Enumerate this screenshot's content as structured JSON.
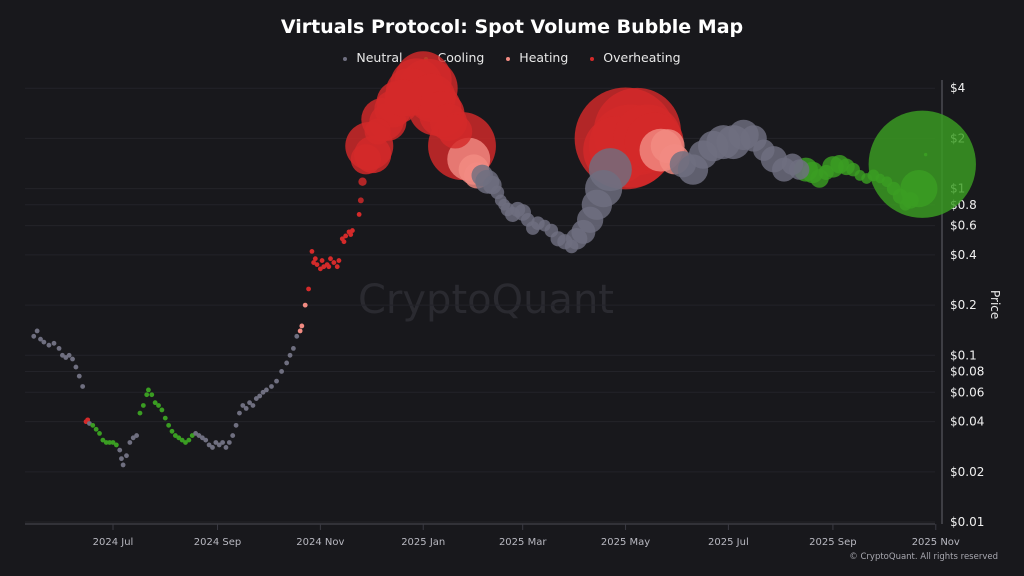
{
  "chart_data": {
    "type": "scatter",
    "title": "Virtuals Protocol: Spot Volume Bubble Map",
    "ylabel": "Price",
    "xlabel": "",
    "yscale": "log",
    "ylim": [
      0.01,
      5
    ],
    "xlim": [
      "2024-05-05",
      "2025-11-01"
    ],
    "grid": true,
    "legend_position": "top",
    "y_ticks": [
      {
        "value": 4,
        "label": "$4"
      },
      {
        "value": 2,
        "label": "$2"
      },
      {
        "value": 1,
        "label": "$1"
      },
      {
        "value": 0.8,
        "label": "$0.8"
      },
      {
        "value": 0.6,
        "label": "$0.6"
      },
      {
        "value": 0.4,
        "label": "$0.4"
      },
      {
        "value": 0.2,
        "label": "$0.2"
      },
      {
        "value": 0.1,
        "label": "$0.1"
      },
      {
        "value": 0.08,
        "label": "$0.08"
      },
      {
        "value": 0.06,
        "label": "$0.06"
      },
      {
        "value": 0.04,
        "label": "$0.04"
      },
      {
        "value": 0.02,
        "label": "$0.02"
      },
      {
        "value": 0.01,
        "label": "$0.01"
      }
    ],
    "x_ticks": [
      {
        "value": "2024-07-01",
        "label": "2024 Jul"
      },
      {
        "value": "2024-09-01",
        "label": "2024 Sep"
      },
      {
        "value": "2024-11-01",
        "label": "2024 Nov"
      },
      {
        "value": "2025-01-01",
        "label": "2025 Jan"
      },
      {
        "value": "2025-03-01",
        "label": "2025 Mar"
      },
      {
        "value": "2025-05-01",
        "label": "2025 May"
      },
      {
        "value": "2025-07-01",
        "label": "2025 Jul"
      },
      {
        "value": "2025-09-01",
        "label": "2025 Sep"
      },
      {
        "value": "2025-11-01",
        "label": "2025 Nov"
      }
    ],
    "categories": [
      {
        "key": "N",
        "name": "Neutral",
        "color": "#6f6f80"
      },
      {
        "key": "C",
        "name": "Cooling",
        "color": "#3a9d22"
      },
      {
        "key": "H",
        "name": "Heating",
        "color": "#f28b82"
      },
      {
        "key": "O",
        "name": "Overheating",
        "color": "#d42a2a"
      }
    ],
    "point_fields": [
      "date",
      "price",
      "relative_volume",
      "category"
    ],
    "points": [
      [
        "2024-05-15",
        0.13,
        1,
        "N"
      ],
      [
        "2024-05-17",
        0.14,
        1,
        "N"
      ],
      [
        "2024-05-19",
        0.125,
        1,
        "N"
      ],
      [
        "2024-05-21",
        0.12,
        1,
        "N"
      ],
      [
        "2024-05-24",
        0.115,
        1,
        "N"
      ],
      [
        "2024-05-27",
        0.118,
        1,
        "N"
      ],
      [
        "2024-05-30",
        0.11,
        1,
        "N"
      ],
      [
        "2024-06-01",
        0.1,
        1,
        "N"
      ],
      [
        "2024-06-03",
        0.097,
        1,
        "N"
      ],
      [
        "2024-06-05",
        0.1,
        1,
        "N"
      ],
      [
        "2024-06-07",
        0.095,
        1,
        "N"
      ],
      [
        "2024-06-09",
        0.085,
        1,
        "N"
      ],
      [
        "2024-06-11",
        0.075,
        1,
        "N"
      ],
      [
        "2024-06-13",
        0.065,
        1,
        "N"
      ],
      [
        "2024-06-15",
        0.04,
        1,
        "O"
      ],
      [
        "2024-06-16",
        0.041,
        1,
        "O"
      ],
      [
        "2024-06-17",
        0.039,
        1,
        "N"
      ],
      [
        "2024-06-19",
        0.038,
        1,
        "C"
      ],
      [
        "2024-06-21",
        0.036,
        1,
        "C"
      ],
      [
        "2024-06-23",
        0.034,
        1,
        "C"
      ],
      [
        "2024-06-25",
        0.031,
        1,
        "C"
      ],
      [
        "2024-06-27",
        0.03,
        1,
        "C"
      ],
      [
        "2024-06-29",
        0.03,
        1,
        "C"
      ],
      [
        "2024-07-01",
        0.03,
        1,
        "C"
      ],
      [
        "2024-07-03",
        0.029,
        1,
        "C"
      ],
      [
        "2024-07-05",
        0.027,
        1,
        "N"
      ],
      [
        "2024-07-06",
        0.024,
        1,
        "N"
      ],
      [
        "2024-07-07",
        0.022,
        1,
        "N"
      ],
      [
        "2024-07-09",
        0.025,
        1,
        "N"
      ],
      [
        "2024-07-11",
        0.03,
        1,
        "N"
      ],
      [
        "2024-07-13",
        0.032,
        1,
        "N"
      ],
      [
        "2024-07-15",
        0.033,
        1,
        "N"
      ],
      [
        "2024-07-17",
        0.045,
        1,
        "C"
      ],
      [
        "2024-07-19",
        0.05,
        1,
        "C"
      ],
      [
        "2024-07-21",
        0.058,
        1,
        "C"
      ],
      [
        "2024-07-22",
        0.062,
        1,
        "C"
      ],
      [
        "2024-07-24",
        0.058,
        1,
        "C"
      ],
      [
        "2024-07-26",
        0.052,
        1,
        "C"
      ],
      [
        "2024-07-28",
        0.05,
        1,
        "C"
      ],
      [
        "2024-07-30",
        0.047,
        1,
        "C"
      ],
      [
        "2024-08-01",
        0.042,
        1,
        "C"
      ],
      [
        "2024-08-03",
        0.038,
        1,
        "C"
      ],
      [
        "2024-08-05",
        0.035,
        1,
        "C"
      ],
      [
        "2024-08-07",
        0.033,
        1,
        "C"
      ],
      [
        "2024-08-09",
        0.032,
        1,
        "C"
      ],
      [
        "2024-08-11",
        0.031,
        1,
        "C"
      ],
      [
        "2024-08-13",
        0.03,
        1,
        "C"
      ],
      [
        "2024-08-15",
        0.031,
        1,
        "C"
      ],
      [
        "2024-08-17",
        0.033,
        1,
        "C"
      ],
      [
        "2024-08-19",
        0.034,
        1,
        "N"
      ],
      [
        "2024-08-21",
        0.033,
        1,
        "N"
      ],
      [
        "2024-08-23",
        0.032,
        1,
        "N"
      ],
      [
        "2024-08-25",
        0.031,
        1,
        "N"
      ],
      [
        "2024-08-27",
        0.029,
        1,
        "N"
      ],
      [
        "2024-08-29",
        0.028,
        1,
        "N"
      ],
      [
        "2024-08-31",
        0.03,
        1,
        "N"
      ],
      [
        "2024-09-02",
        0.029,
        1,
        "N"
      ],
      [
        "2024-09-04",
        0.03,
        1,
        "N"
      ],
      [
        "2024-09-06",
        0.028,
        1,
        "N"
      ],
      [
        "2024-09-08",
        0.03,
        1,
        "N"
      ],
      [
        "2024-09-10",
        0.033,
        1,
        "N"
      ],
      [
        "2024-09-12",
        0.038,
        1,
        "N"
      ],
      [
        "2024-09-14",
        0.045,
        1,
        "N"
      ],
      [
        "2024-09-16",
        0.05,
        1,
        "N"
      ],
      [
        "2024-09-18",
        0.048,
        1,
        "N"
      ],
      [
        "2024-09-20",
        0.052,
        1,
        "N"
      ],
      [
        "2024-09-22",
        0.05,
        1,
        "N"
      ],
      [
        "2024-09-24",
        0.055,
        1,
        "N"
      ],
      [
        "2024-09-26",
        0.057,
        1,
        "N"
      ],
      [
        "2024-09-28",
        0.06,
        1,
        "N"
      ],
      [
        "2024-09-30",
        0.062,
        1,
        "N"
      ],
      [
        "2024-10-03",
        0.065,
        1,
        "N"
      ],
      [
        "2024-10-06",
        0.07,
        1,
        "N"
      ],
      [
        "2024-10-09",
        0.08,
        1,
        "N"
      ],
      [
        "2024-10-12",
        0.09,
        1,
        "N"
      ],
      [
        "2024-10-14",
        0.1,
        1,
        "N"
      ],
      [
        "2024-10-16",
        0.11,
        1,
        "N"
      ],
      [
        "2024-10-18",
        0.13,
        1,
        "N"
      ],
      [
        "2024-10-20",
        0.14,
        1,
        "H"
      ],
      [
        "2024-10-21",
        0.15,
        1,
        "H"
      ],
      [
        "2024-10-23",
        0.2,
        1,
        "H"
      ],
      [
        "2024-10-25",
        0.25,
        1,
        "O"
      ],
      [
        "2024-10-27",
        0.42,
        1,
        "O"
      ],
      [
        "2024-10-28",
        0.36,
        1,
        "O"
      ],
      [
        "2024-10-29",
        0.38,
        1,
        "O"
      ],
      [
        "2024-10-30",
        0.35,
        1,
        "O"
      ],
      [
        "2024-11-01",
        0.33,
        1,
        "O"
      ],
      [
        "2024-11-02",
        0.37,
        1,
        "O"
      ],
      [
        "2024-11-03",
        0.34,
        1,
        "O"
      ],
      [
        "2024-11-05",
        0.35,
        1,
        "O"
      ],
      [
        "2024-11-06",
        0.34,
        1,
        "O"
      ],
      [
        "2024-11-07",
        0.38,
        1,
        "O"
      ],
      [
        "2024-11-09",
        0.36,
        1,
        "O"
      ],
      [
        "2024-11-11",
        0.34,
        1,
        "O"
      ],
      [
        "2024-11-12",
        0.37,
        1,
        "O"
      ],
      [
        "2024-11-14",
        0.5,
        1,
        "O"
      ],
      [
        "2024-11-15",
        0.48,
        1,
        "O"
      ],
      [
        "2024-11-16",
        0.52,
        1,
        "O"
      ],
      [
        "2024-11-18",
        0.55,
        1,
        "O"
      ],
      [
        "2024-11-19",
        0.53,
        1,
        "O"
      ],
      [
        "2024-11-20",
        0.56,
        1,
        "O"
      ],
      [
        "2024-11-24",
        0.7,
        1,
        "O"
      ],
      [
        "2024-11-25",
        0.85,
        1.5,
        "O"
      ],
      [
        "2024-11-26",
        1.1,
        3,
        "O"
      ],
      [
        "2024-11-28",
        1.5,
        40,
        "O"
      ],
      [
        "2024-11-30",
        1.8,
        100,
        "O"
      ],
      [
        "2024-12-02",
        1.6,
        60,
        "O"
      ],
      [
        "2024-12-05",
        2.2,
        30,
        "O"
      ],
      [
        "2024-12-08",
        2.6,
        80,
        "O"
      ],
      [
        "2024-12-11",
        2.5,
        60,
        "O"
      ],
      [
        "2024-12-14",
        3.0,
        60,
        "O"
      ],
      [
        "2024-12-17",
        3.3,
        80,
        "O"
      ],
      [
        "2024-12-20",
        3.5,
        60,
        "O"
      ],
      [
        "2024-12-24",
        3.8,
        100,
        "O"
      ],
      [
        "2024-12-28",
        4.2,
        120,
        "O"
      ],
      [
        "2025-01-01",
        4.5,
        140,
        "O"
      ],
      [
        "2025-01-04",
        4.0,
        150,
        "O"
      ],
      [
        "2025-01-06",
        3.5,
        100,
        "O"
      ],
      [
        "2025-01-08",
        3.0,
        120,
        "O"
      ],
      [
        "2025-01-12",
        2.8,
        90,
        "O"
      ],
      [
        "2025-01-16",
        2.5,
        60,
        "O"
      ],
      [
        "2025-01-20",
        2.2,
        50,
        "O"
      ],
      [
        "2025-01-24",
        1.8,
        200,
        "O"
      ],
      [
        "2025-01-28",
        1.5,
        80,
        "H"
      ],
      [
        "2025-01-31",
        1.3,
        40,
        "H"
      ],
      [
        "2025-02-02",
        1.2,
        30,
        "H"
      ],
      [
        "2025-02-05",
        1.2,
        20,
        "N"
      ],
      [
        "2025-02-08",
        1.1,
        25,
        "N"
      ],
      [
        "2025-02-11",
        1.05,
        15,
        "N"
      ],
      [
        "2025-02-14",
        0.95,
        8,
        "N"
      ],
      [
        "2025-02-16",
        0.85,
        6,
        "N"
      ],
      [
        "2025-02-18",
        0.8,
        6,
        "N"
      ],
      [
        "2025-02-20",
        0.75,
        8,
        "N"
      ],
      [
        "2025-02-23",
        0.7,
        10,
        "N"
      ],
      [
        "2025-02-26",
        0.75,
        10,
        "N"
      ],
      [
        "2025-03-01",
        0.72,
        12,
        "N"
      ],
      [
        "2025-03-04",
        0.65,
        8,
        "N"
      ],
      [
        "2025-03-07",
        0.58,
        8,
        "N"
      ],
      [
        "2025-03-10",
        0.62,
        8,
        "N"
      ],
      [
        "2025-03-14",
        0.6,
        6,
        "N"
      ],
      [
        "2025-03-18",
        0.56,
        8,
        "N"
      ],
      [
        "2025-03-22",
        0.5,
        10,
        "N"
      ],
      [
        "2025-03-26",
        0.48,
        10,
        "N"
      ],
      [
        "2025-03-30",
        0.45,
        8,
        "N"
      ],
      [
        "2025-04-02",
        0.5,
        20,
        "N"
      ],
      [
        "2025-04-06",
        0.55,
        25,
        "N"
      ],
      [
        "2025-04-10",
        0.65,
        30,
        "N"
      ],
      [
        "2025-04-14",
        0.8,
        40,
        "N"
      ],
      [
        "2025-04-18",
        1.0,
        60,
        "N"
      ],
      [
        "2025-04-22",
        1.3,
        80,
        "N"
      ],
      [
        "2025-04-26",
        1.7,
        200,
        "O"
      ],
      [
        "2025-05-01",
        2.0,
        450,
        "O"
      ],
      [
        "2025-05-04",
        1.8,
        300,
        "O"
      ],
      [
        "2025-05-08",
        2.2,
        330,
        "O"
      ],
      [
        "2025-05-14",
        2.0,
        200,
        "O"
      ],
      [
        "2025-05-18",
        1.9,
        150,
        "O"
      ],
      [
        "2025-05-22",
        1.7,
        80,
        "H"
      ],
      [
        "2025-05-26",
        1.8,
        50,
        "H"
      ],
      [
        "2025-05-30",
        1.5,
        40,
        "H"
      ],
      [
        "2025-06-04",
        1.4,
        30,
        "N"
      ],
      [
        "2025-06-10",
        1.3,
        40,
        "N"
      ],
      [
        "2025-06-16",
        1.6,
        35,
        "N"
      ],
      [
        "2025-06-22",
        1.8,
        40,
        "N"
      ],
      [
        "2025-06-28",
        1.9,
        50,
        "N"
      ],
      [
        "2025-07-04",
        1.9,
        50,
        "N"
      ],
      [
        "2025-07-10",
        2.1,
        40,
        "N"
      ],
      [
        "2025-07-16",
        2.0,
        30,
        "N"
      ],
      [
        "2025-07-22",
        1.7,
        20,
        "N"
      ],
      [
        "2025-07-28",
        1.5,
        30,
        "N"
      ],
      [
        "2025-08-03",
        1.3,
        25,
        "N"
      ],
      [
        "2025-08-08",
        1.4,
        20,
        "N"
      ],
      [
        "2025-08-12",
        1.3,
        18,
        "N"
      ],
      [
        "2025-08-16",
        1.3,
        25,
        "C"
      ],
      [
        "2025-08-20",
        1.25,
        20,
        "C"
      ],
      [
        "2025-08-24",
        1.15,
        15,
        "C"
      ],
      [
        "2025-08-28",
        1.25,
        10,
        "C"
      ],
      [
        "2025-09-01",
        1.35,
        20,
        "C"
      ],
      [
        "2025-09-05",
        1.4,
        15,
        "C"
      ],
      [
        "2025-09-09",
        1.35,
        12,
        "C"
      ],
      [
        "2025-09-13",
        1.3,
        8,
        "C"
      ],
      [
        "2025-09-17",
        1.2,
        5,
        "C"
      ],
      [
        "2025-09-21",
        1.15,
        5,
        "C"
      ],
      [
        "2025-09-25",
        1.2,
        6,
        "C"
      ],
      [
        "2025-09-29",
        1.15,
        4,
        "C"
      ],
      [
        "2025-10-03",
        1.1,
        5,
        "C"
      ],
      [
        "2025-10-07",
        1.0,
        8,
        "C"
      ],
      [
        "2025-10-11",
        0.9,
        10,
        "C"
      ],
      [
        "2025-10-14",
        0.8,
        6,
        "C"
      ],
      [
        "2025-10-17",
        0.85,
        12,
        "C"
      ],
      [
        "2025-10-24",
        1.4,
        500,
        "C"
      ],
      [
        "2025-10-22",
        1.0,
        60,
        "C"
      ],
      [
        "2025-10-26",
        1.6,
        0.5,
        "C"
      ]
    ]
  },
  "watermark": "CryptoQuant",
  "footer": "© CryptoQuant. All rights reserved"
}
